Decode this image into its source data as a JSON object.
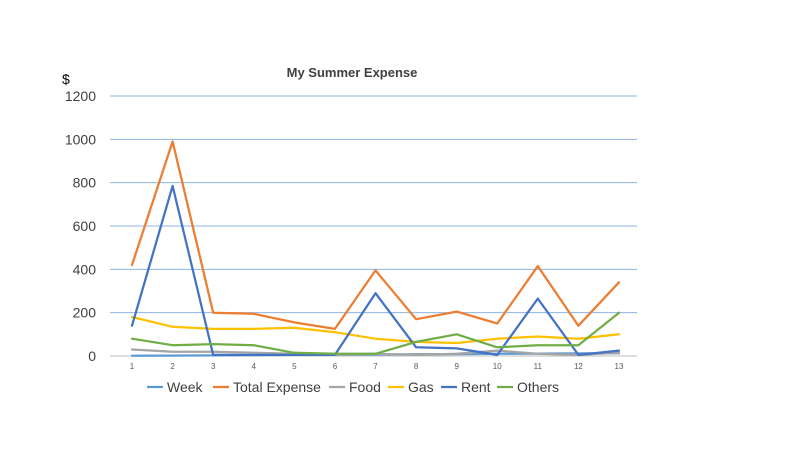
{
  "chart_data": {
    "type": "line",
    "title": "My Summer Expense",
    "ylabel": "$",
    "xlabel": "",
    "ylim": [
      0,
      1200
    ],
    "yticks": [
      0,
      200,
      400,
      600,
      800,
      1000,
      1200
    ],
    "grid": true,
    "legend_position": "bottom",
    "categories": [
      "1",
      "2",
      "3",
      "4",
      "5",
      "6",
      "7",
      "8",
      "9",
      "10",
      "11",
      "12",
      "13"
    ],
    "series": [
      {
        "name": "Week",
        "color": "#5b9bd5",
        "values": [
          1,
          2,
          3,
          4,
          5,
          6,
          7,
          8,
          9,
          10,
          11,
          12,
          13
        ]
      },
      {
        "name": "Total Expense",
        "color": "#ed7d31",
        "values": [
          420,
          990,
          200,
          195,
          155,
          125,
          395,
          170,
          205,
          150,
          415,
          140,
          340
        ]
      },
      {
        "name": "Food",
        "color": "#a5a5a5",
        "values": [
          30,
          20,
          20,
          15,
          10,
          5,
          10,
          5,
          10,
          25,
          10,
          5,
          15
        ]
      },
      {
        "name": "Gas",
        "color": "#ffc000",
        "values": [
          180,
          135,
          125,
          125,
          130,
          110,
          80,
          65,
          60,
          80,
          90,
          80,
          100
        ]
      },
      {
        "name": "Rent",
        "color": "#4472c4",
        "values": [
          140,
          785,
          5,
          5,
          5,
          5,
          290,
          40,
          35,
          5,
          265,
          5,
          25
        ]
      },
      {
        "name": "Others",
        "color": "#70ad47",
        "values": [
          80,
          50,
          55,
          50,
          15,
          10,
          10,
          65,
          100,
          40,
          50,
          50,
          200
        ]
      }
    ]
  }
}
